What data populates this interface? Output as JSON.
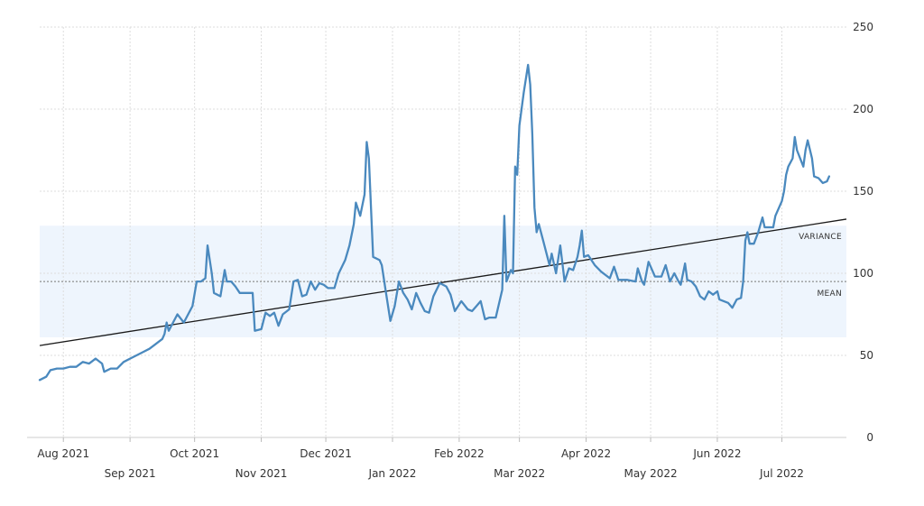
{
  "colors": {
    "series": "#4a89be",
    "trend": "#1a1a1a",
    "variance_band": "#eef5fd",
    "grid": "#dddddd",
    "mean_line": "#777777"
  },
  "chart_data": {
    "type": "line",
    "title": "",
    "xlabel": "",
    "ylabel": "",
    "y_axis_position": "right",
    "ylim": [
      0,
      250
    ],
    "y_ticks": [
      0,
      50,
      100,
      150,
      200,
      250
    ],
    "xlim": [
      "2021-07-21",
      "2022-07-31"
    ],
    "grid": true,
    "x_ticks": [
      {
        "date": "2021-08-01",
        "label": "Aug 2021"
      },
      {
        "date": "2021-09-01",
        "label": "Sep 2021"
      },
      {
        "date": "2021-10-01",
        "label": "Oct 2021"
      },
      {
        "date": "2021-11-01",
        "label": "Nov 2021"
      },
      {
        "date": "2021-12-01",
        "label": "Dec 2021"
      },
      {
        "date": "2022-01-01",
        "label": "Jan 2022"
      },
      {
        "date": "2022-02-01",
        "label": "Feb 2022"
      },
      {
        "date": "2022-03-01",
        "label": "Mar 2022"
      },
      {
        "date": "2022-04-01",
        "label": "Apr 2022"
      },
      {
        "date": "2022-05-01",
        "label": "May 2022"
      },
      {
        "date": "2022-06-01",
        "label": "Jun 2022"
      },
      {
        "date": "2022-07-01",
        "label": "Jul 2022"
      }
    ],
    "mean": {
      "label": "MEAN",
      "value": 95
    },
    "variance_band": {
      "label": "VARIANCE",
      "low": 61,
      "high": 129
    },
    "trend_line": {
      "start": {
        "date": "2021-07-21",
        "value": 56
      },
      "end": {
        "date": "2022-07-31",
        "value": 133
      }
    },
    "series": [
      {
        "points": [
          [
            "2021-07-21",
            35
          ],
          [
            "2021-07-24",
            37
          ],
          [
            "2021-07-26",
            41
          ],
          [
            "2021-07-29",
            42
          ],
          [
            "2021-08-01",
            42
          ],
          [
            "2021-08-04",
            43
          ],
          [
            "2021-08-07",
            43
          ],
          [
            "2021-08-10",
            46
          ],
          [
            "2021-08-13",
            45
          ],
          [
            "2021-08-16",
            48
          ],
          [
            "2021-08-19",
            45
          ],
          [
            "2021-08-20",
            40
          ],
          [
            "2021-08-23",
            42
          ],
          [
            "2021-08-26",
            42
          ],
          [
            "2021-08-29",
            46
          ],
          [
            "2021-09-01",
            48
          ],
          [
            "2021-09-04",
            50
          ],
          [
            "2021-09-07",
            52
          ],
          [
            "2021-09-10",
            54
          ],
          [
            "2021-09-13",
            57
          ],
          [
            "2021-09-16",
            60
          ],
          [
            "2021-09-17",
            63
          ],
          [
            "2021-09-18",
            70
          ],
          [
            "2021-09-19",
            65
          ],
          [
            "2021-09-21",
            70
          ],
          [
            "2021-09-23",
            75
          ],
          [
            "2021-09-26",
            70
          ],
          [
            "2021-09-28",
            75
          ],
          [
            "2021-09-30",
            80
          ],
          [
            "2021-10-02",
            95
          ],
          [
            "2021-10-04",
            95
          ],
          [
            "2021-10-06",
            97
          ],
          [
            "2021-10-07",
            117
          ],
          [
            "2021-10-09",
            100
          ],
          [
            "2021-10-10",
            88
          ],
          [
            "2021-10-13",
            86
          ],
          [
            "2021-10-15",
            102
          ],
          [
            "2021-10-16",
            95
          ],
          [
            "2021-10-18",
            95
          ],
          [
            "2021-10-20",
            92
          ],
          [
            "2021-10-22",
            88
          ],
          [
            "2021-10-25",
            88
          ],
          [
            "2021-10-28",
            88
          ],
          [
            "2021-10-29",
            65
          ],
          [
            "2021-11-01",
            66
          ],
          [
            "2021-11-03",
            76
          ],
          [
            "2021-11-05",
            74
          ],
          [
            "2021-11-07",
            76
          ],
          [
            "2021-11-09",
            68
          ],
          [
            "2021-11-11",
            75
          ],
          [
            "2021-11-14",
            78
          ],
          [
            "2021-11-16",
            95
          ],
          [
            "2021-11-18",
            96
          ],
          [
            "2021-11-20",
            86
          ],
          [
            "2021-11-22",
            87
          ],
          [
            "2021-11-24",
            95
          ],
          [
            "2021-11-26",
            90
          ],
          [
            "2021-11-28",
            94
          ],
          [
            "2021-11-30",
            93
          ],
          [
            "2021-12-02",
            91
          ],
          [
            "2021-12-05",
            91
          ],
          [
            "2021-12-07",
            100
          ],
          [
            "2021-12-10",
            108
          ],
          [
            "2021-12-12",
            117
          ],
          [
            "2021-12-14",
            130
          ],
          [
            "2021-12-15",
            143
          ],
          [
            "2021-12-17",
            135
          ],
          [
            "2021-12-19",
            148
          ],
          [
            "2021-12-20",
            180
          ],
          [
            "2021-12-21",
            170
          ],
          [
            "2021-12-23",
            110
          ],
          [
            "2021-12-26",
            108
          ],
          [
            "2021-12-27",
            105
          ],
          [
            "2021-12-29",
            88
          ],
          [
            "2021-12-31",
            71
          ],
          [
            "2022-01-02",
            80
          ],
          [
            "2022-01-04",
            95
          ],
          [
            "2022-01-06",
            88
          ],
          [
            "2022-01-08",
            84
          ],
          [
            "2022-01-10",
            78
          ],
          [
            "2022-01-12",
            88
          ],
          [
            "2022-01-14",
            82
          ],
          [
            "2022-01-16",
            77
          ],
          [
            "2022-01-18",
            76
          ],
          [
            "2022-01-20",
            86
          ],
          [
            "2022-01-23",
            94
          ],
          [
            "2022-01-26",
            92
          ],
          [
            "2022-01-28",
            87
          ],
          [
            "2022-01-30",
            77
          ],
          [
            "2022-02-02",
            83
          ],
          [
            "2022-02-05",
            78
          ],
          [
            "2022-02-07",
            77
          ],
          [
            "2022-02-09",
            80
          ],
          [
            "2022-02-11",
            83
          ],
          [
            "2022-02-13",
            72
          ],
          [
            "2022-02-15",
            73
          ],
          [
            "2022-02-18",
            73
          ],
          [
            "2022-02-21",
            90
          ],
          [
            "2022-02-22",
            135
          ],
          [
            "2022-02-23",
            95
          ],
          [
            "2022-02-25",
            102
          ],
          [
            "2022-02-26",
            100
          ],
          [
            "2022-02-27",
            165
          ],
          [
            "2022-02-28",
            160
          ],
          [
            "2022-03-01",
            190
          ],
          [
            "2022-03-03",
            210
          ],
          [
            "2022-03-05",
            227
          ],
          [
            "2022-03-06",
            215
          ],
          [
            "2022-03-07",
            185
          ],
          [
            "2022-03-08",
            140
          ],
          [
            "2022-03-09",
            125
          ],
          [
            "2022-03-10",
            130
          ],
          [
            "2022-03-12",
            120
          ],
          [
            "2022-03-15",
            105
          ],
          [
            "2022-03-16",
            112
          ],
          [
            "2022-03-18",
            100
          ],
          [
            "2022-03-20",
            117
          ],
          [
            "2022-03-22",
            95
          ],
          [
            "2022-03-24",
            103
          ],
          [
            "2022-03-26",
            102
          ],
          [
            "2022-03-28",
            110
          ],
          [
            "2022-03-29",
            117
          ],
          [
            "2022-03-30",
            126
          ],
          [
            "2022-03-31",
            110
          ],
          [
            "2022-04-02",
            111
          ],
          [
            "2022-04-05",
            105
          ],
          [
            "2022-04-08",
            101
          ],
          [
            "2022-04-12",
            97
          ],
          [
            "2022-04-14",
            104
          ],
          [
            "2022-04-16",
            96
          ],
          [
            "2022-04-20",
            96
          ],
          [
            "2022-04-24",
            95
          ],
          [
            "2022-04-25",
            103
          ],
          [
            "2022-04-27",
            95
          ],
          [
            "2022-04-28",
            93
          ],
          [
            "2022-04-30",
            107
          ],
          [
            "2022-05-01",
            104
          ],
          [
            "2022-05-03",
            98
          ],
          [
            "2022-05-06",
            98
          ],
          [
            "2022-05-08",
            105
          ],
          [
            "2022-05-10",
            95
          ],
          [
            "2022-05-12",
            100
          ],
          [
            "2022-05-14",
            95
          ],
          [
            "2022-05-15",
            93
          ],
          [
            "2022-05-17",
            106
          ],
          [
            "2022-05-18",
            96
          ],
          [
            "2022-05-20",
            95
          ],
          [
            "2022-05-22",
            92
          ],
          [
            "2022-05-24",
            86
          ],
          [
            "2022-05-26",
            84
          ],
          [
            "2022-05-28",
            89
          ],
          [
            "2022-05-30",
            87
          ],
          [
            "2022-06-01",
            89
          ],
          [
            "2022-06-02",
            84
          ],
          [
            "2022-06-04",
            83
          ],
          [
            "2022-06-06",
            82
          ],
          [
            "2022-06-08",
            79
          ],
          [
            "2022-06-10",
            84
          ],
          [
            "2022-06-12",
            85
          ],
          [
            "2022-06-13",
            95
          ],
          [
            "2022-06-14",
            120
          ],
          [
            "2022-06-15",
            125
          ],
          [
            "2022-06-16",
            118
          ],
          [
            "2022-06-18",
            118
          ],
          [
            "2022-06-20",
            125
          ],
          [
            "2022-06-22",
            134
          ],
          [
            "2022-06-23",
            128
          ],
          [
            "2022-06-25",
            128
          ],
          [
            "2022-06-27",
            128
          ],
          [
            "2022-06-28",
            135
          ],
          [
            "2022-07-01",
            144
          ],
          [
            "2022-07-02",
            150
          ],
          [
            "2022-07-03",
            160
          ],
          [
            "2022-07-04",
            165
          ],
          [
            "2022-07-06",
            170
          ],
          [
            "2022-07-07",
            183
          ],
          [
            "2022-07-08",
            175
          ],
          [
            "2022-07-11",
            165
          ],
          [
            "2022-07-12",
            175
          ],
          [
            "2022-07-13",
            181
          ],
          [
            "2022-07-15",
            170
          ],
          [
            "2022-07-16",
            159
          ],
          [
            "2022-07-18",
            158
          ],
          [
            "2022-07-20",
            155
          ],
          [
            "2022-07-22",
            156
          ],
          [
            "2022-07-23",
            159
          ]
        ]
      }
    ]
  }
}
